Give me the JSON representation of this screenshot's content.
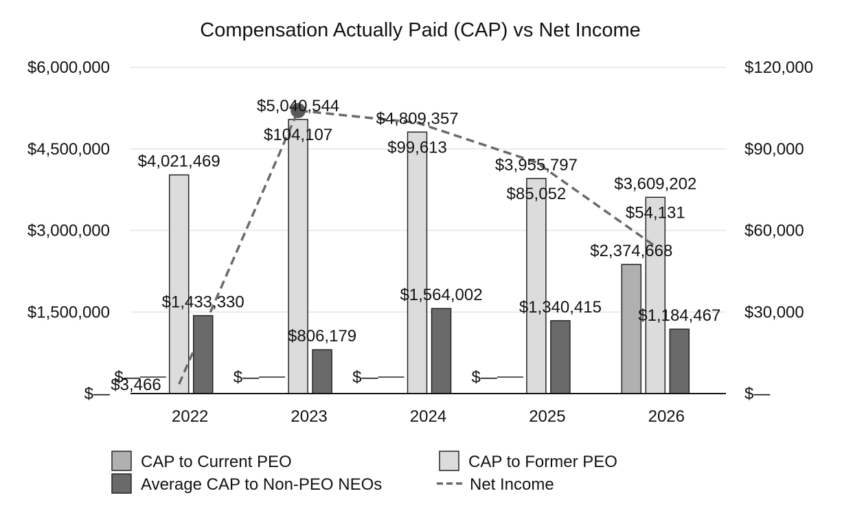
{
  "chart_data": {
    "type": "bar",
    "title": "Compensation Actually Paid (CAP) vs Net Income",
    "categories": [
      "2022",
      "2023",
      "2024",
      "2025",
      "2026"
    ],
    "y_left": {
      "ticks": [
        0,
        1500000,
        3000000,
        4500000,
        6000000
      ],
      "tick_labels": [
        "$—",
        "$1,500,000",
        "$3,000,000",
        "$4,500,000",
        "$6,000,000"
      ],
      "ylim": [
        0,
        6000000
      ]
    },
    "y_right": {
      "ticks": [
        0,
        30000,
        60000,
        90000,
        120000
      ],
      "tick_labels": [
        "$—",
        "$30,000",
        "$60,000",
        "$90,000",
        "$120,000"
      ],
      "ylim": [
        0,
        120000
      ]
    },
    "grid": true,
    "legend_position": "bottom",
    "series": [
      {
        "name": "CAP to Current PEO",
        "kind": "bar",
        "axis": "left",
        "color": "#b0b0b0",
        "values": [
          0,
          0,
          0,
          0,
          2374668
        ],
        "labels": [
          "$—",
          "$—",
          "$—",
          "$—",
          "$2,374,668"
        ]
      },
      {
        "name": "CAP to Former PEO",
        "kind": "bar",
        "axis": "left",
        "color": "#dcdcdc",
        "values": [
          4021469,
          5040544,
          4809357,
          3955797,
          3609202
        ],
        "labels": [
          "$4,021,469",
          "$5,040,544",
          "$4,809,357",
          "$3,955,797",
          "$3,609,202"
        ]
      },
      {
        "name": "Average CAP to Non-PEO NEOs",
        "kind": "bar",
        "axis": "left",
        "color": "#6a6a6a",
        "values": [
          1433330,
          806179,
          1564002,
          1340415,
          1184467
        ],
        "labels": [
          "$1,433,330",
          "$806,179",
          "$1,564,002",
          "$1,340,415",
          "$1,184,467"
        ]
      },
      {
        "name": "Net Income",
        "kind": "line",
        "axis": "right",
        "color": "#6a6a6a",
        "dash": true,
        "values": [
          3466,
          104107,
          99613,
          85052,
          54131
        ],
        "labels": [
          "$3,466",
          "$104,107",
          "$99,613",
          "$85,052",
          "$54,131"
        ]
      }
    ]
  }
}
